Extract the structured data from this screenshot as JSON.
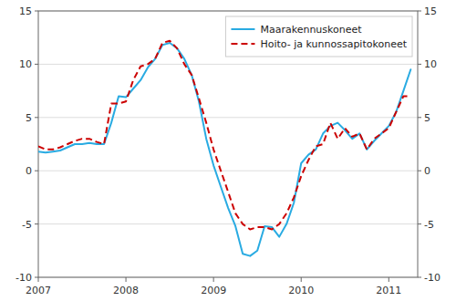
{
  "chart_data": {
    "type": "line",
    "title": "",
    "x": [
      2007.0,
      2007.083,
      2007.167,
      2007.25,
      2007.333,
      2007.417,
      2007.5,
      2007.583,
      2007.667,
      2007.75,
      2007.833,
      2007.917,
      2008.0,
      2008.083,
      2008.167,
      2008.25,
      2008.333,
      2008.417,
      2008.5,
      2008.583,
      2008.667,
      2008.75,
      2008.833,
      2008.917,
      2009.0,
      2009.083,
      2009.167,
      2009.25,
      2009.333,
      2009.417,
      2009.5,
      2009.583,
      2009.667,
      2009.75,
      2009.833,
      2009.917,
      2010.0,
      2010.083,
      2010.167,
      2010.25,
      2010.333,
      2010.417,
      2010.5,
      2010.583,
      2010.667,
      2010.75,
      2010.833,
      2010.917,
      2011.0,
      2011.083,
      2011.167,
      2011.25
    ],
    "series": [
      {
        "name": "Maarakennuskoneet",
        "color": "#29ABE2",
        "line_style": "solid",
        "values": [
          1.8,
          1.7,
          1.8,
          1.9,
          2.2,
          2.5,
          2.5,
          2.6,
          2.5,
          2.5,
          4.5,
          7.0,
          6.9,
          7.7,
          8.5,
          9.7,
          10.5,
          11.8,
          12.0,
          11.5,
          10.5,
          9.0,
          6.5,
          3.0,
          0.5,
          -1.5,
          -3.5,
          -5.2,
          -7.8,
          -8.0,
          -7.5,
          -5.2,
          -5.3,
          -6.2,
          -5.0,
          -3.0,
          0.7,
          1.5,
          2.0,
          3.5,
          4.2,
          4.5,
          3.8,
          3.0,
          3.5,
          2.0,
          2.8,
          3.5,
          4.2,
          5.5,
          7.5,
          9.5
        ]
      },
      {
        "name": "Hoito- ja kunnossapitokoneet",
        "color": "#CC0000",
        "line_style": "dashed",
        "values": [
          2.3,
          2.0,
          2.0,
          2.2,
          2.5,
          2.8,
          3.0,
          3.0,
          2.7,
          2.5,
          6.3,
          6.3,
          6.5,
          8.5,
          9.8,
          10.0,
          10.5,
          12.0,
          12.2,
          11.5,
          10.0,
          9.0,
          6.8,
          4.5,
          2.0,
          0.0,
          -2.0,
          -4.0,
          -5.0,
          -5.5,
          -5.3,
          -5.3,
          -5.5,
          -5.0,
          -4.0,
          -2.5,
          -0.5,
          1.0,
          2.3,
          2.5,
          4.5,
          3.0,
          4.0,
          3.2,
          3.5,
          2.0,
          3.0,
          3.5,
          4.0,
          5.5,
          7.0,
          7.0
        ]
      }
    ],
    "xlim": [
      2007.0,
      2011.33
    ],
    "xticks": [
      2007,
      2008,
      2009,
      2010,
      2011
    ],
    "ylim": [
      -10,
      15
    ],
    "yticks": [
      -10,
      -5,
      0,
      5,
      10,
      15
    ],
    "y2lim": [
      -10,
      15
    ],
    "y2ticks": [
      -10,
      -5,
      0,
      5,
      10,
      15
    ],
    "grid": true,
    "legend": "upper right"
  }
}
